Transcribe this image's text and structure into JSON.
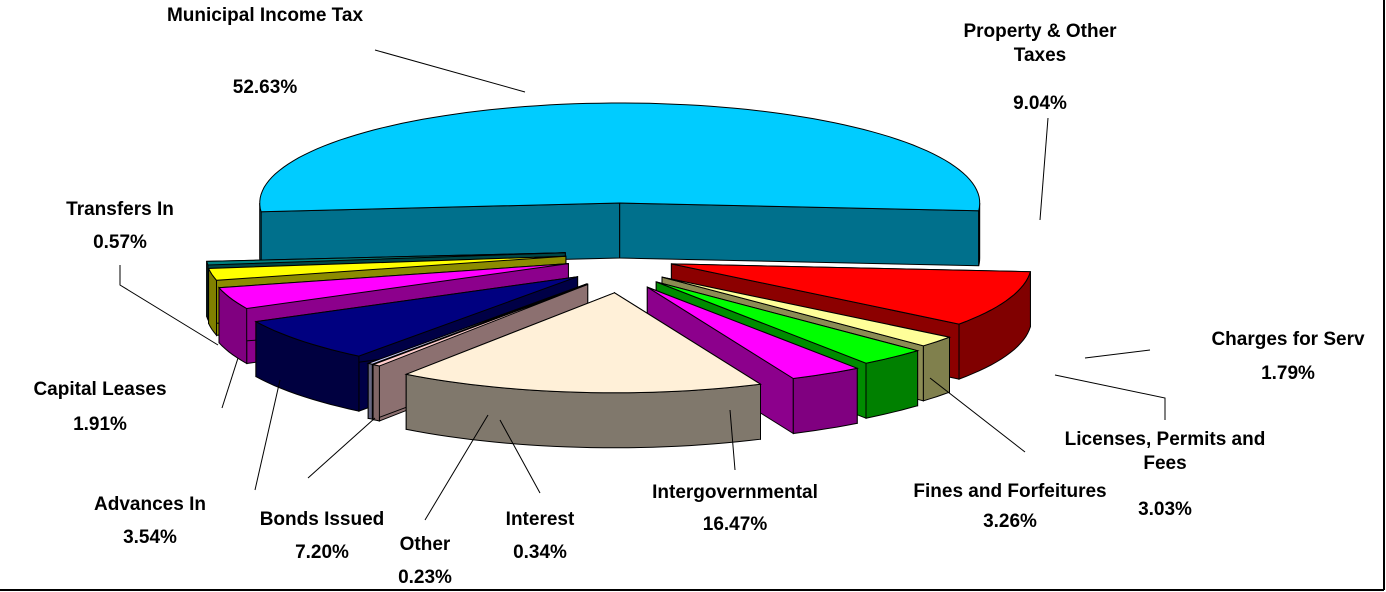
{
  "chart_data": {
    "type": "pie3d",
    "categories": [
      "Municipal Income Tax",
      "Property & Other Taxes",
      "Charges for Serv",
      "Licenses, Permits and Fees",
      "Fines and Forfeitures",
      "Intergovernmental",
      "Interest",
      "Other",
      "Bonds Issued",
      "Advances In",
      "Capital Leases",
      "Transfers In"
    ],
    "values": [
      52.63,
      9.04,
      1.79,
      3.03,
      3.26,
      16.47,
      0.34,
      0.23,
      7.2,
      3.54,
      1.91,
      0.57
    ],
    "value_labels": [
      "52.63%",
      "9.04%",
      "1.79%",
      "3.03%",
      "3.26%",
      "16.47%",
      "0.34%",
      "0.23%",
      "7.20%",
      "3.54%",
      "1.91%",
      "0.57%"
    ],
    "colors": [
      "#00ccff",
      "#ff0000",
      "#ffff99",
      "#00ff00",
      "#ff00ff",
      "#fff0d8",
      "#ffcccc",
      "#ccccff",
      "#000080",
      "#ff00ff",
      "#ffff00",
      "#008080"
    ]
  }
}
